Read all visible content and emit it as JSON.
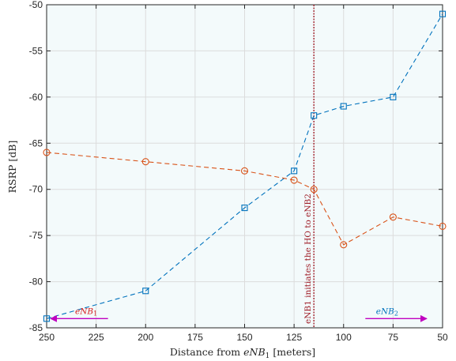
{
  "chart_data": {
    "type": "line",
    "title": "",
    "xlabel_prefix": "Distance from ",
    "xlabel_var": "eNB",
    "xlabel_sub": "1",
    "xlabel_suffix": " [meters]",
    "ylabel": "RSRP [dB]",
    "x_reversed": true,
    "xlim": [
      250,
      50
    ],
    "ylim": [
      -85,
      -50
    ],
    "x_ticks": [
      250,
      225,
      200,
      175,
      150,
      125,
      100,
      75,
      50
    ],
    "y_ticks": [
      -85,
      -80,
      -75,
      -70,
      -65,
      -60,
      -55,
      -50
    ],
    "grid": true,
    "background_color": "#f3fafb",
    "series": [
      {
        "marker": "square",
        "color": "#0072bd",
        "points": [
          [
            250,
            -84
          ],
          [
            200,
            -81
          ],
          [
            150,
            -72
          ],
          [
            125,
            -68
          ],
          [
            115,
            -62
          ],
          [
            100,
            -61
          ],
          [
            75,
            -60
          ],
          [
            50,
            -51
          ]
        ]
      },
      {
        "marker": "circle",
        "color": "#d95319",
        "points": [
          [
            250,
            -66
          ],
          [
            200,
            -67
          ],
          [
            150,
            -68
          ],
          [
            125,
            -69
          ],
          [
            115,
            -70
          ],
          [
            100,
            -76
          ],
          [
            75,
            -73
          ],
          [
            50,
            -74
          ]
        ]
      }
    ],
    "handover": {
      "x": 115,
      "label": "eNB1 initiates the HO to eNB2",
      "color": "#a0202a"
    },
    "annotations": [
      {
        "var": "eNB",
        "sub": "1",
        "color": "#d62020",
        "arrow_from": 219,
        "arrow_to": 248,
        "label_x": 230,
        "y": -84
      },
      {
        "var": "eNB",
        "sub": "2",
        "color": "#0072bd",
        "arrow_from": 89,
        "arrow_to": 58,
        "label_x": 78,
        "y": -84
      }
    ],
    "arrow_color": "#c000c0"
  }
}
